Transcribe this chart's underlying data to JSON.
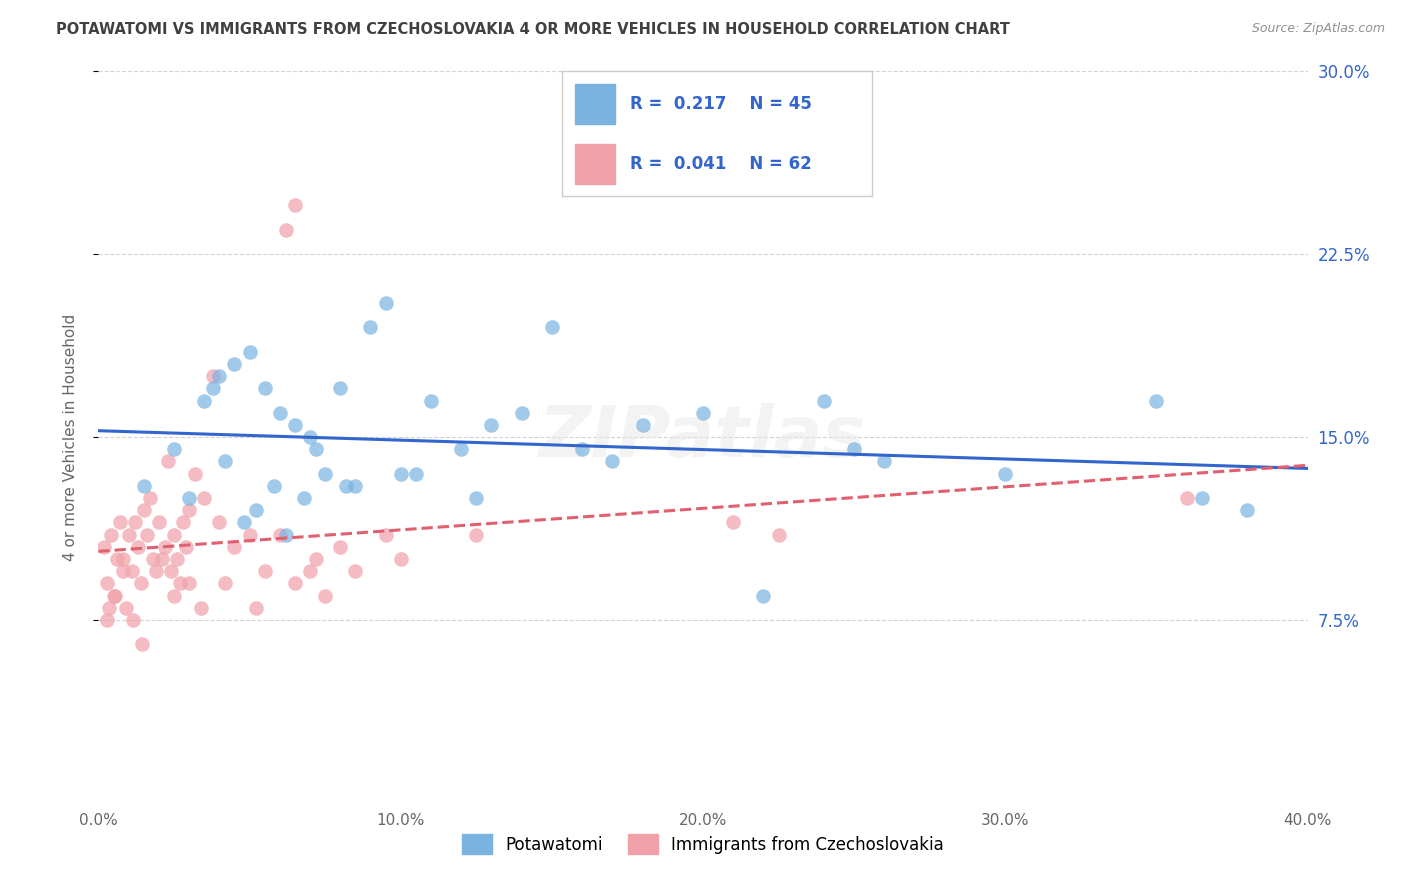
{
  "title": "POTAWATOMI VS IMMIGRANTS FROM CZECHOSLOVAKIA 4 OR MORE VEHICLES IN HOUSEHOLD CORRELATION CHART",
  "source": "Source: ZipAtlas.com",
  "ylabel": "4 or more Vehicles in Household",
  "xlim": [
    0.0,
    40.0
  ],
  "ylim": [
    0.0,
    30.0
  ],
  "xticks": [
    0.0,
    10.0,
    20.0,
    30.0,
    40.0
  ],
  "yticks_right": [
    7.5,
    15.0,
    22.5,
    30.0
  ],
  "legend1_label": "Potawatomi",
  "legend2_label": "Immigrants from Czechoslovakia",
  "R1": 0.217,
  "N1": 45,
  "R2": 0.041,
  "N2": 62,
  "color1": "#7ab3e0",
  "color2": "#f0a0a8",
  "trendline1_color": "#3366cc",
  "trendline2_color": "#e06070",
  "background_color": "#ffffff",
  "grid_color": "#c8c8c8",
  "title_color": "#404040",
  "source_color": "#909090",
  "legend_text_color": "#3366cc",
  "blue_scatter_x": [
    1.5,
    2.5,
    3.5,
    4.0,
    4.5,
    5.0,
    5.5,
    6.0,
    6.5,
    7.0,
    7.5,
    8.0,
    8.5,
    9.0,
    9.5,
    10.0,
    11.0,
    12.0,
    13.0,
    14.0,
    15.0,
    16.0,
    17.0,
    18.0,
    20.0,
    22.0,
    25.0,
    26.0,
    30.0,
    35.0,
    38.0,
    3.0,
    4.2,
    5.8,
    7.2,
    8.2,
    6.8,
    10.5,
    12.5,
    4.8,
    3.8,
    5.2,
    6.2,
    24.0,
    36.5
  ],
  "blue_scatter_y": [
    13.0,
    14.5,
    16.5,
    17.5,
    18.0,
    18.5,
    17.0,
    16.0,
    15.5,
    15.0,
    13.5,
    17.0,
    13.0,
    19.5,
    20.5,
    13.5,
    16.5,
    14.5,
    15.5,
    16.0,
    19.5,
    14.5,
    14.0,
    15.5,
    16.0,
    8.5,
    14.5,
    14.0,
    13.5,
    16.5,
    12.0,
    12.5,
    14.0,
    13.0,
    14.5,
    13.0,
    12.5,
    13.5,
    12.5,
    11.5,
    17.0,
    12.0,
    11.0,
    16.5,
    12.5
  ],
  "pink_scatter_x": [
    0.2,
    0.3,
    0.4,
    0.5,
    0.6,
    0.7,
    0.8,
    0.9,
    1.0,
    1.1,
    1.2,
    1.3,
    1.4,
    1.5,
    1.6,
    1.7,
    1.8,
    1.9,
    2.0,
    2.1,
    2.2,
    2.3,
    2.4,
    2.5,
    2.6,
    2.7,
    2.8,
    2.9,
    3.0,
    3.2,
    3.5,
    3.8,
    4.0,
    4.5,
    5.0,
    5.5,
    6.0,
    6.5,
    7.0,
    7.5,
    8.0,
    8.5,
    9.5,
    10.0,
    21.0,
    22.5,
    36.0,
    0.35,
    0.55,
    1.15,
    1.45,
    4.2,
    5.2,
    6.2,
    7.2,
    2.5,
    3.4,
    0.8,
    0.3,
    6.5,
    3.0,
    12.5
  ],
  "pink_scatter_y": [
    10.5,
    9.0,
    11.0,
    8.5,
    10.0,
    11.5,
    10.0,
    8.0,
    11.0,
    9.5,
    11.5,
    10.5,
    9.0,
    12.0,
    11.0,
    12.5,
    10.0,
    9.5,
    11.5,
    10.0,
    10.5,
    14.0,
    9.5,
    11.0,
    10.0,
    9.0,
    11.5,
    10.5,
    12.0,
    13.5,
    12.5,
    17.5,
    11.5,
    10.5,
    11.0,
    9.5,
    11.0,
    9.0,
    9.5,
    8.5,
    10.5,
    9.5,
    11.0,
    10.0,
    11.5,
    11.0,
    12.5,
    8.0,
    8.5,
    7.5,
    6.5,
    9.0,
    8.0,
    23.5,
    10.0,
    8.5,
    8.0,
    9.5,
    7.5,
    24.5,
    9.0,
    11.0
  ]
}
